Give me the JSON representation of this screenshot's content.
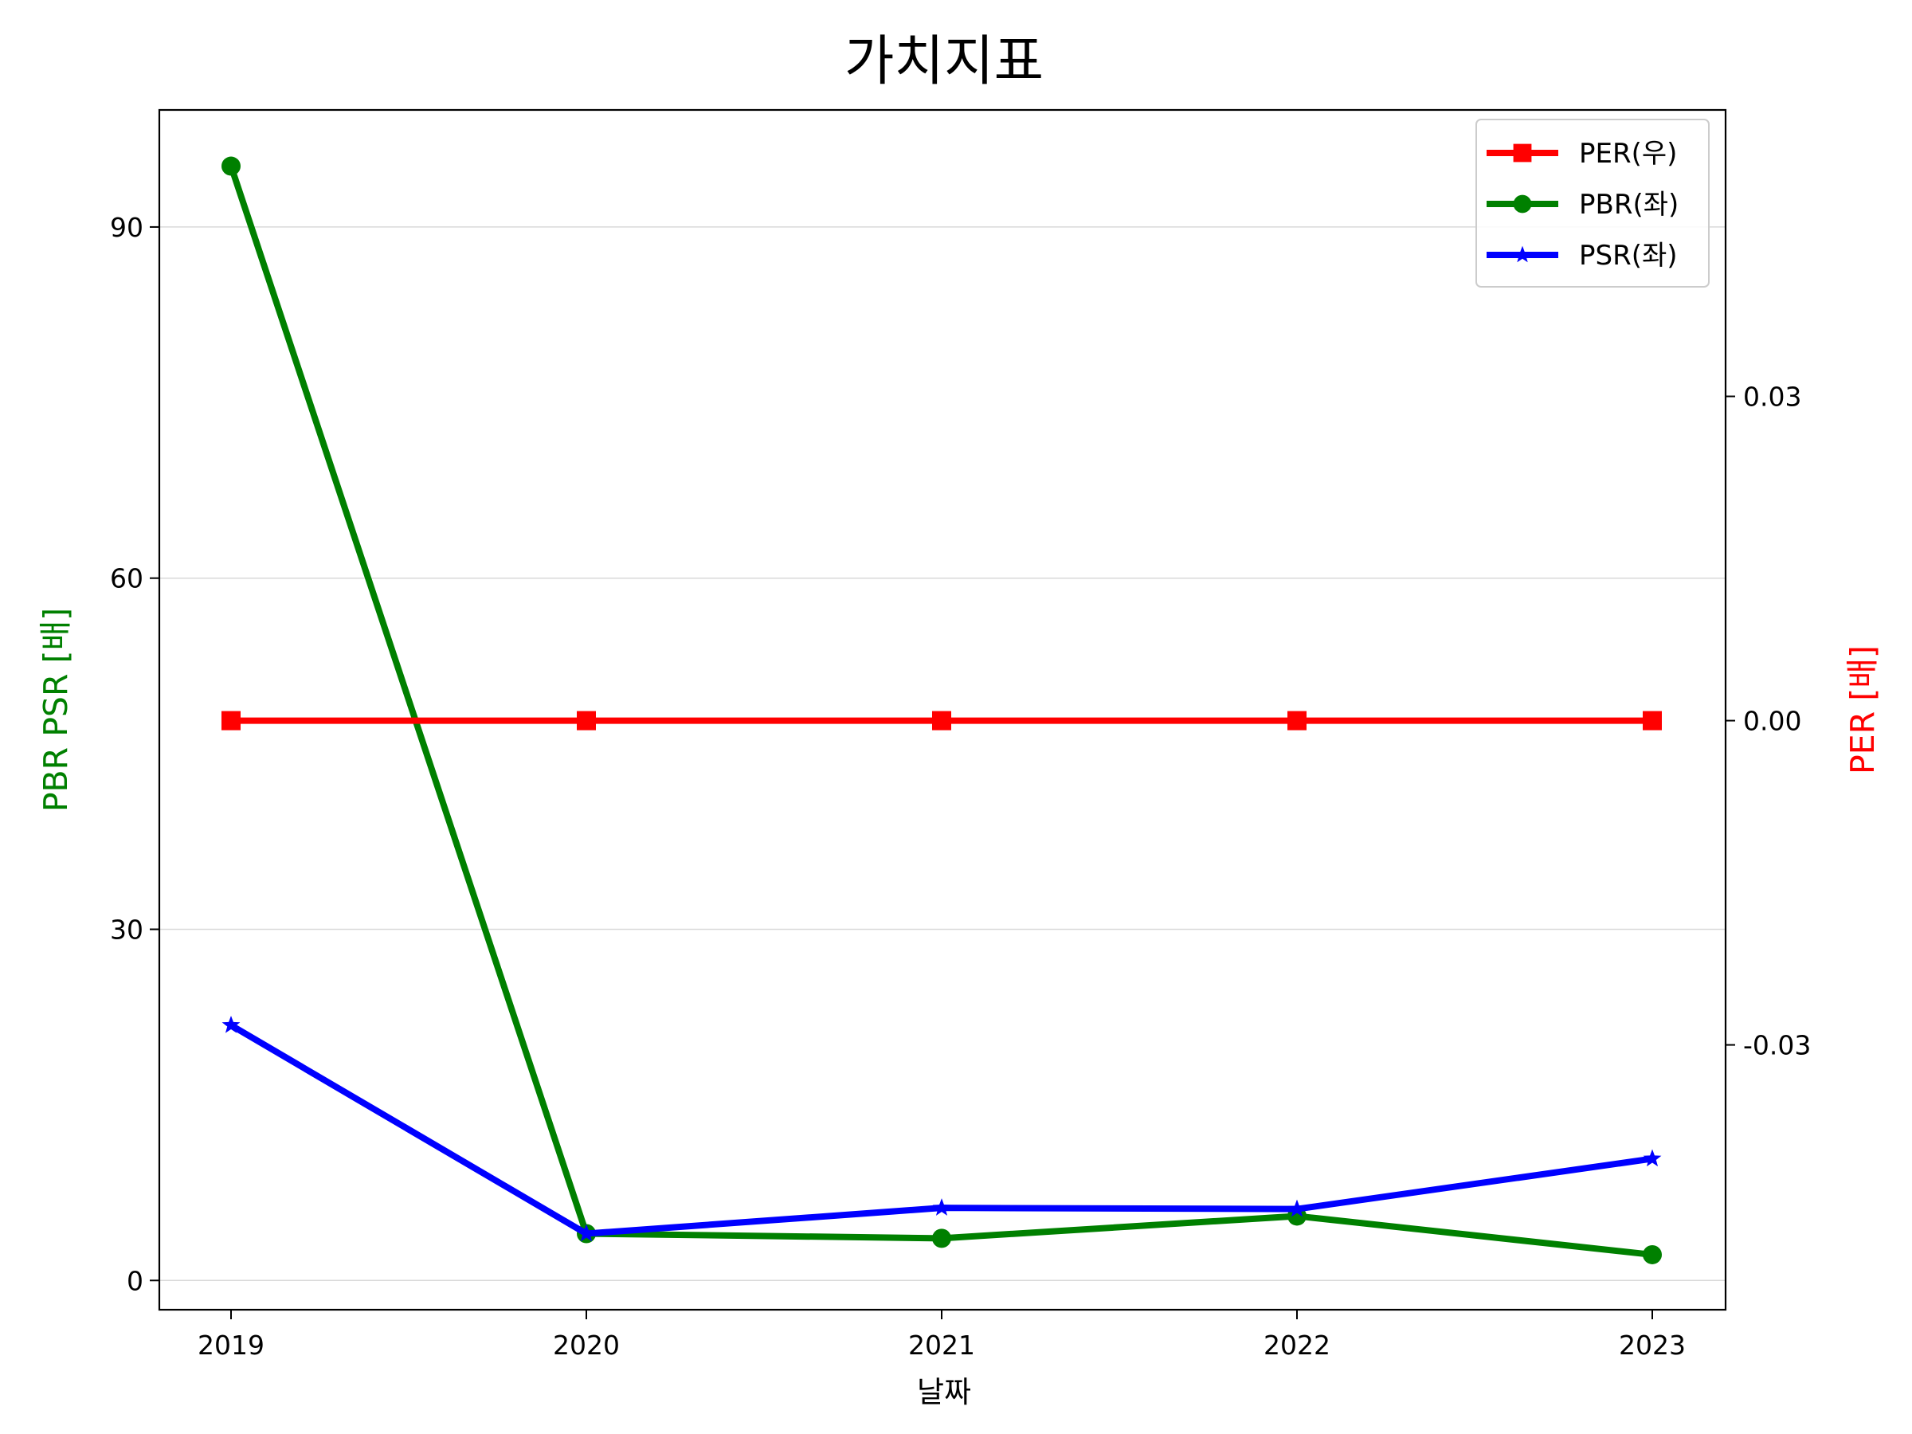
{
  "chart_data": {
    "type": "line",
    "title": "가치지표",
    "xlabel": "날짜",
    "ylabel_left": "PBR PSR [배]",
    "ylabel_right": "PER [배]",
    "colors": {
      "per": "#ff0000",
      "pbr": "#008000",
      "psr": "#0000ff",
      "grid": "#d9d9d9"
    },
    "grid": true,
    "legend_position": "top-right",
    "categories": [
      "2019",
      "2020",
      "2021",
      "2022",
      "2023"
    ],
    "y_left": {
      "ylim": [
        -2.5,
        100
      ],
      "ticks": [
        0,
        30,
        60,
        90
      ],
      "tick_labels": [
        "0",
        "30",
        "60",
        "90"
      ]
    },
    "y_right": {
      "ylim": [
        -0.0545,
        0.0565
      ],
      "ticks": [
        -0.03,
        0.0,
        0.03
      ],
      "tick_labels": [
        "-0.03",
        "0.00",
        "0.03"
      ]
    },
    "series": [
      {
        "name": "PER(우)",
        "axis": "right",
        "marker": "square",
        "color": "#ff0000",
        "values": [
          0,
          0,
          0,
          0,
          0
        ]
      },
      {
        "name": "PBR(좌)",
        "axis": "left",
        "marker": "circle",
        "color": "#008000",
        "values": [
          95.2,
          4.0,
          3.6,
          5.5,
          2.2
        ]
      },
      {
        "name": "PSR(좌)",
        "axis": "left",
        "marker": "star",
        "color": "#0000ff",
        "values": [
          21.8,
          4.0,
          6.2,
          6.1,
          10.4
        ]
      }
    ]
  }
}
